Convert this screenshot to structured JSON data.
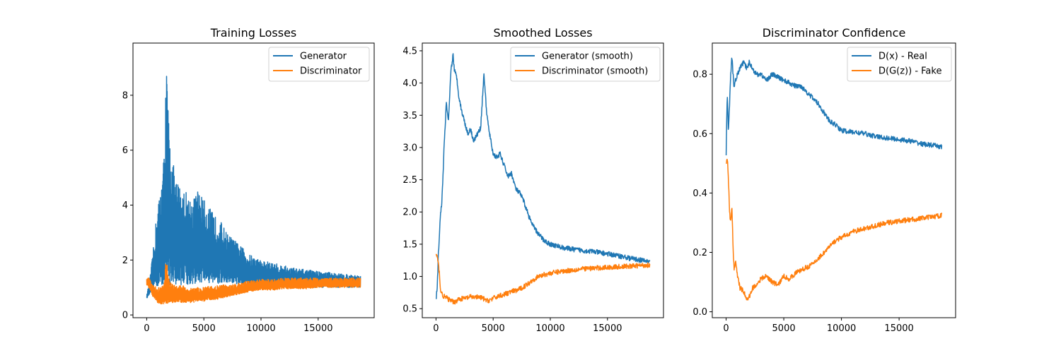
{
  "colors": {
    "series1": "#1f77b4",
    "series2": "#ff7f0e"
  },
  "chart_data": [
    {
      "type": "line",
      "title": "Training Losses",
      "xlabel": "",
      "ylabel": "",
      "xlim": [
        -1200,
        19900
      ],
      "ylim": [
        -0.1,
        9.9
      ],
      "xticks": [
        0,
        5000,
        10000,
        15000
      ],
      "yticks": [
        0,
        2,
        4,
        6,
        8
      ],
      "legend_position": "upper right",
      "series": [
        {
          "name": "Generator",
          "color": "#1f77b4",
          "x": [
            0,
            300,
            600,
            900,
            1200,
            1500,
            1700,
            2000,
            2500,
            3000,
            3500,
            4000,
            4500,
            5000,
            5500,
            6000,
            6500,
            7000,
            7500,
            8000,
            8500,
            9000,
            10000,
            11000,
            12000,
            13000,
            14000,
            15000,
            16000,
            17000,
            18000,
            18700
          ],
          "y": [
            0.7,
            1.4,
            2.5,
            3.8,
            4.6,
            5.8,
            9.4,
            6.5,
            5.0,
            4.7,
            4.5,
            4.2,
            4.6,
            4.2,
            3.9,
            3.6,
            3.4,
            3.0,
            2.8,
            2.6,
            2.4,
            2.2,
            2.0,
            1.9,
            1.8,
            1.7,
            1.65,
            1.6,
            1.55,
            1.5,
            1.45,
            1.45
          ],
          "y_low": [
            0.6,
            0.8,
            0.9,
            1.0,
            1.05,
            1.1,
            1.1,
            1.1,
            1.1,
            1.1,
            1.1,
            1.1,
            1.15,
            1.15,
            1.15,
            1.15,
            1.1,
            1.1,
            1.1,
            1.1,
            1.05,
            1.05,
            1.05,
            1.0,
            1.0,
            1.0,
            1.0,
            1.0,
            1.0,
            1.0,
            1.0,
            1.0
          ]
        },
        {
          "name": "Discriminator",
          "color": "#ff7f0e",
          "x": [
            0,
            300,
            600,
            900,
            1200,
            1500,
            1700,
            2000,
            2500,
            3000,
            3500,
            4000,
            4500,
            5000,
            5500,
            6000,
            6500,
            7000,
            7500,
            8000,
            8500,
            9000,
            10000,
            11000,
            12000,
            13000,
            14000,
            15000,
            16000,
            17000,
            18000,
            18700
          ],
          "y": [
            1.4,
            1.3,
            1.1,
            1.0,
            1.0,
            1.1,
            2.1,
            1.2,
            1.1,
            1.1,
            1.0,
            1.0,
            1.0,
            1.0,
            1.05,
            1.05,
            1.1,
            1.1,
            1.1,
            1.15,
            1.2,
            1.25,
            1.3,
            1.3,
            1.35,
            1.35,
            1.35,
            1.35,
            1.35,
            1.35,
            1.35,
            1.35
          ],
          "y_low": [
            1.1,
            0.9,
            0.6,
            0.45,
            0.4,
            0.4,
            0.4,
            0.45,
            0.45,
            0.45,
            0.45,
            0.45,
            0.5,
            0.5,
            0.55,
            0.55,
            0.6,
            0.65,
            0.7,
            0.75,
            0.8,
            0.85,
            0.9,
            0.9,
            0.95,
            0.95,
            0.95,
            1.0,
            1.0,
            1.0,
            1.0,
            1.0
          ]
        }
      ]
    },
    {
      "type": "line",
      "title": "Smoothed Losses",
      "xlabel": "",
      "ylabel": "",
      "xlim": [
        -1200,
        19900
      ],
      "ylim": [
        0.36,
        4.62
      ],
      "xticks": [
        0,
        5000,
        10000,
        15000
      ],
      "yticks": [
        0.5,
        1.0,
        1.5,
        2.0,
        2.5,
        3.0,
        3.5,
        4.0,
        4.5
      ],
      "legend_position": "upper right",
      "series": [
        {
          "name": "Generator (smooth)",
          "color": "#1f77b4",
          "x": [
            0,
            100,
            200,
            400,
            500,
            600,
            700,
            800,
            900,
            1000,
            1100,
            1200,
            1300,
            1400,
            1500,
            1600,
            1800,
            2000,
            2200,
            2500,
            2800,
            3000,
            3300,
            3600,
            3900,
            4200,
            4400,
            4600,
            4800,
            5000,
            5300,
            5600,
            6000,
            6300,
            6600,
            7000,
            7300,
            7600,
            8000,
            8300,
            8600,
            9000,
            9500,
            10000,
            11000,
            12000,
            13000,
            14000,
            15000,
            16000,
            17000,
            18000,
            18700
          ],
          "y": [
            0.65,
            0.8,
            1.3,
            2.0,
            2.1,
            2.5,
            3.0,
            3.3,
            3.7,
            3.5,
            3.4,
            3.8,
            4.2,
            4.3,
            4.45,
            4.2,
            4.1,
            3.8,
            3.6,
            3.4,
            3.2,
            3.3,
            3.1,
            3.2,
            3.3,
            4.15,
            3.6,
            3.3,
            3.1,
            2.9,
            2.85,
            2.9,
            2.7,
            2.55,
            2.6,
            2.35,
            2.3,
            2.2,
            2.0,
            1.85,
            1.75,
            1.65,
            1.55,
            1.5,
            1.45,
            1.42,
            1.4,
            1.38,
            1.35,
            1.32,
            1.28,
            1.25,
            1.23
          ]
        },
        {
          "name": "Discriminator (smooth)",
          "color": "#ff7f0e",
          "x": [
            0,
            100,
            200,
            300,
            400,
            600,
            800,
            1000,
            1300,
            1600,
            2000,
            2500,
            3000,
            3500,
            4000,
            4500,
            5000,
            5500,
            6000,
            6500,
            7000,
            7500,
            8000,
            8500,
            9000,
            9500,
            10000,
            11000,
            12000,
            13000,
            14000,
            15000,
            16000,
            17000,
            18000,
            18700
          ],
          "y": [
            1.35,
            1.3,
            1.2,
            1.05,
            0.78,
            0.7,
            0.68,
            0.66,
            0.62,
            0.6,
            0.65,
            0.66,
            0.68,
            0.68,
            0.67,
            0.62,
            0.66,
            0.7,
            0.72,
            0.76,
            0.78,
            0.82,
            0.88,
            0.95,
            1.0,
            1.03,
            1.05,
            1.08,
            1.1,
            1.12,
            1.13,
            1.14,
            1.15,
            1.16,
            1.17,
            1.18
          ]
        }
      ]
    },
    {
      "type": "line",
      "title": "Discriminator Confidence",
      "xlabel": "",
      "ylabel": "",
      "xlim": [
        -1200,
        19900
      ],
      "ylim": [
        -0.02,
        0.905
      ],
      "xticks": [
        0,
        5000,
        10000,
        15000
      ],
      "yticks": [
        0.0,
        0.2,
        0.4,
        0.6,
        0.8
      ],
      "legend_position": "upper right",
      "series": [
        {
          "name": "D(x) - Real",
          "color": "#1f77b4",
          "x": [
            0,
            100,
            200,
            300,
            400,
            500,
            600,
            700,
            800,
            1000,
            1200,
            1500,
            1800,
            2000,
            2300,
            2600,
            3000,
            3500,
            4000,
            4500,
            5000,
            5500,
            6000,
            6500,
            7000,
            7500,
            8000,
            8500,
            9000,
            9500,
            10000,
            11000,
            12000,
            13000,
            14000,
            15000,
            16000,
            17000,
            18000,
            18700
          ],
          "y": [
            0.53,
            0.74,
            0.6,
            0.7,
            0.8,
            0.86,
            0.8,
            0.75,
            0.78,
            0.8,
            0.82,
            0.84,
            0.82,
            0.84,
            0.82,
            0.8,
            0.8,
            0.78,
            0.8,
            0.79,
            0.78,
            0.77,
            0.76,
            0.76,
            0.74,
            0.72,
            0.7,
            0.67,
            0.64,
            0.63,
            0.61,
            0.605,
            0.6,
            0.59,
            0.585,
            0.58,
            0.575,
            0.565,
            0.56,
            0.555
          ]
        },
        {
          "name": "D(G(z)) - Fake",
          "color": "#ff7f0e",
          "x": [
            0,
            100,
            200,
            300,
            400,
            500,
            600,
            700,
            800,
            1000,
            1200,
            1500,
            1800,
            2000,
            2300,
            2600,
            3000,
            3500,
            4000,
            4500,
            5000,
            5500,
            6000,
            6500,
            7000,
            7500,
            8000,
            8500,
            9000,
            9500,
            10000,
            11000,
            12000,
            13000,
            14000,
            15000,
            16000,
            17000,
            18000,
            18700
          ],
          "y": [
            0.5,
            0.52,
            0.45,
            0.33,
            0.3,
            0.36,
            0.22,
            0.14,
            0.17,
            0.12,
            0.08,
            0.07,
            0.04,
            0.05,
            0.08,
            0.09,
            0.11,
            0.12,
            0.1,
            0.09,
            0.12,
            0.11,
            0.13,
            0.14,
            0.15,
            0.16,
            0.18,
            0.2,
            0.22,
            0.24,
            0.25,
            0.27,
            0.28,
            0.29,
            0.3,
            0.305,
            0.31,
            0.315,
            0.32,
            0.325
          ]
        }
      ]
    }
  ]
}
